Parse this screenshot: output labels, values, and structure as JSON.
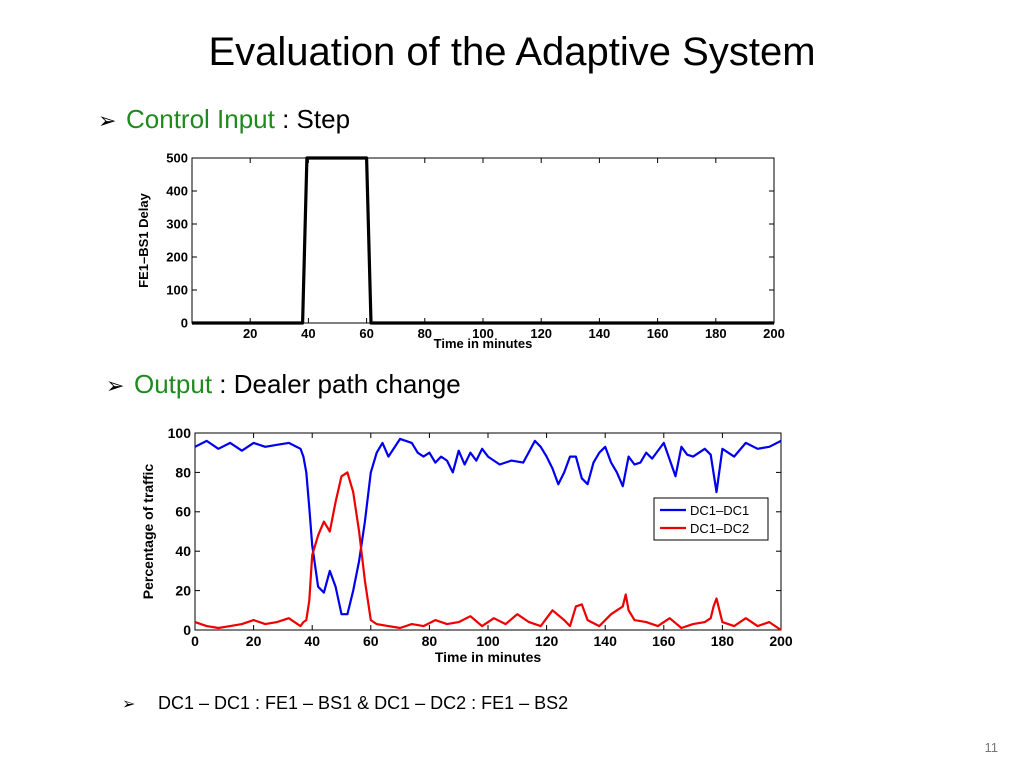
{
  "slide": {
    "title": "Evaluation of the Adaptive System",
    "bullet1": {
      "arrow": "➢",
      "highlight": "Control Input",
      "rest": " : Step"
    },
    "bullet2": {
      "arrow": "➢",
      "highlight": "Output",
      "rest": " : Dealer path change"
    },
    "note": {
      "arrow": "➢",
      "text": "DC1 – DC1 : FE1 – BS1 & DC1 – DC2 : FE1 – BS2"
    },
    "page_number": "11",
    "highlight_color": "#1f8b1f"
  },
  "chart_data": [
    {
      "type": "line",
      "title": "",
      "xlabel": "Time in minutes",
      "ylabel": "FE1–BS1 Delay",
      "xlim": [
        0,
        200
      ],
      "ylim": [
        0,
        500
      ],
      "xticks": [
        20,
        40,
        60,
        80,
        100,
        120,
        140,
        160,
        180,
        200
      ],
      "yticks": [
        0,
        100,
        200,
        300,
        400,
        500
      ],
      "grid": false,
      "series": [
        {
          "color": "#000000",
          "x": [
            0,
            38,
            39.5,
            60,
            61.5,
            200
          ],
          "y": [
            0,
            0,
            500,
            500,
            0,
            0
          ]
        }
      ]
    },
    {
      "type": "line",
      "title": "",
      "xlabel": "Time in minutes",
      "ylabel": "Percentage of traffic",
      "xlim": [
        0,
        200
      ],
      "ylim": [
        0,
        100
      ],
      "xticks": [
        0,
        20,
        40,
        60,
        80,
        100,
        120,
        140,
        160,
        180,
        200
      ],
      "yticks": [
        0,
        20,
        40,
        60,
        80,
        100
      ],
      "grid": false,
      "legend": "center-right",
      "series": [
        {
          "name": "DC1–DC1",
          "color": "#0000ee",
          "x": [
            0,
            4,
            8,
            12,
            16,
            20,
            24,
            28,
            32,
            36,
            37,
            38,
            39,
            40,
            42,
            44,
            46,
            48,
            50,
            52,
            54,
            56,
            58,
            60,
            62,
            64,
            66,
            70,
            74,
            76,
            78,
            80,
            82,
            84,
            86,
            88,
            90,
            92,
            94,
            96,
            98,
            100,
            104,
            108,
            112,
            116,
            118,
            120,
            122,
            124,
            126,
            128,
            130,
            132,
            134,
            136,
            138,
            140,
            142,
            144,
            146,
            148,
            150,
            152,
            154,
            156,
            160,
            164,
            166,
            168,
            170,
            174,
            176,
            178,
            180,
            184,
            188,
            192,
            196,
            200
          ],
          "y": [
            93,
            96,
            92,
            95,
            91,
            95,
            93,
            94,
            95,
            92,
            88,
            80,
            62,
            43,
            22,
            19,
            30,
            22,
            8,
            8,
            20,
            35,
            55,
            80,
            90,
            95,
            88,
            97,
            95,
            90,
            88,
            90,
            85,
            88,
            86,
            80,
            91,
            84,
            90,
            86,
            92,
            88,
            84,
            86,
            85,
            96,
            93,
            88,
            82,
            74,
            80,
            88,
            88,
            77,
            74,
            85,
            90,
            93,
            85,
            80,
            73,
            88,
            84,
            85,
            90,
            87,
            95,
            78,
            93,
            89,
            88,
            92,
            89,
            70,
            92,
            88,
            95,
            92,
            93,
            96
          ]
        },
        {
          "name": "DC1–DC2",
          "color": "#ee0000",
          "x": [
            0,
            4,
            8,
            12,
            16,
            20,
            24,
            28,
            32,
            36,
            37,
            38,
            39,
            40,
            42,
            44,
            46,
            48,
            50,
            52,
            54,
            56,
            58,
            60,
            62,
            66,
            70,
            74,
            78,
            82,
            86,
            90,
            94,
            98,
            102,
            106,
            110,
            114,
            118,
            120,
            122,
            126,
            128,
            130,
            132,
            134,
            138,
            142,
            146,
            147,
            148,
            150,
            154,
            158,
            162,
            166,
            170,
            174,
            176,
            177,
            178,
            180,
            184,
            188,
            192,
            196,
            200
          ],
          "y": [
            4,
            2,
            1,
            2,
            3,
            5,
            3,
            4,
            6,
            2,
            4,
            5,
            15,
            38,
            48,
            55,
            50,
            65,
            78,
            80,
            70,
            50,
            25,
            5,
            3,
            2,
            1,
            3,
            2,
            5,
            3,
            4,
            7,
            2,
            6,
            3,
            8,
            4,
            2,
            6,
            10,
            5,
            2,
            12,
            13,
            5,
            2,
            8,
            12,
            18,
            10,
            5,
            4,
            2,
            6,
            1,
            3,
            4,
            6,
            12,
            16,
            4,
            2,
            6,
            2,
            4,
            0
          ]
        }
      ]
    }
  ]
}
